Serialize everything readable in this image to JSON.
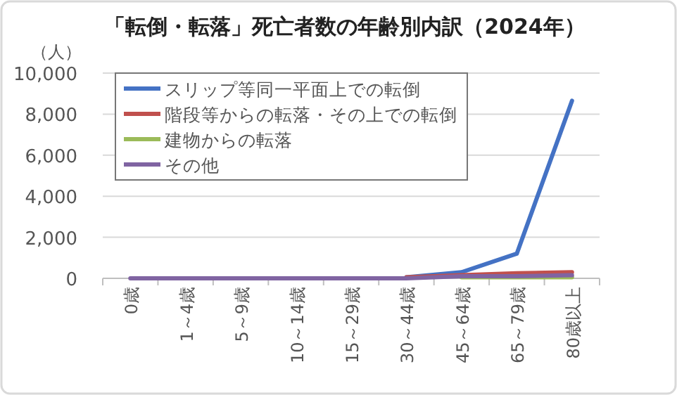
{
  "chart_data": {
    "type": "line",
    "title": "「転倒・転落」死亡者数の年齢別内訳（2024年）",
    "ylabel": "（人）",
    "categories": [
      "0歳",
      "1～4歳",
      "5～9歳",
      "10～14歳",
      "15～29歳",
      "30～44歳",
      "45～64歳",
      "65～79歳",
      "80歳以上"
    ],
    "series": [
      {
        "name": "スリップ等同一平面上での転倒",
        "color": "#4472c4",
        "values": [
          null,
          null,
          null,
          null,
          null,
          50,
          300,
          1200,
          8650
        ]
      },
      {
        "name": "階段等からの転落・その上での転倒",
        "color": "#c0504d",
        "values": [
          null,
          null,
          null,
          null,
          null,
          50,
          150,
          250,
          300
        ]
      },
      {
        "name": "建物からの転落",
        "color": "#9bbb59",
        "values": [
          null,
          null,
          null,
          null,
          null,
          null,
          50,
          50,
          50
        ]
      },
      {
        "name": "その他",
        "color": "#8064a2",
        "values": [
          0,
          0,
          0,
          0,
          0,
          0,
          100,
          100,
          150
        ]
      }
    ],
    "ylim": [
      0,
      10000
    ],
    "yticks": [
      {
        "value": 0,
        "label": "0"
      },
      {
        "value": 2000,
        "label": "2,000"
      },
      {
        "value": 4000,
        "label": "4,000"
      },
      {
        "value": 6000,
        "label": "6,000"
      },
      {
        "value": 8000,
        "label": "8,000"
      },
      {
        "value": 10000,
        "label": "10,000"
      }
    ],
    "grid": "y",
    "legend": "top left",
    "marker": "none",
    "line_style": "solid"
  }
}
